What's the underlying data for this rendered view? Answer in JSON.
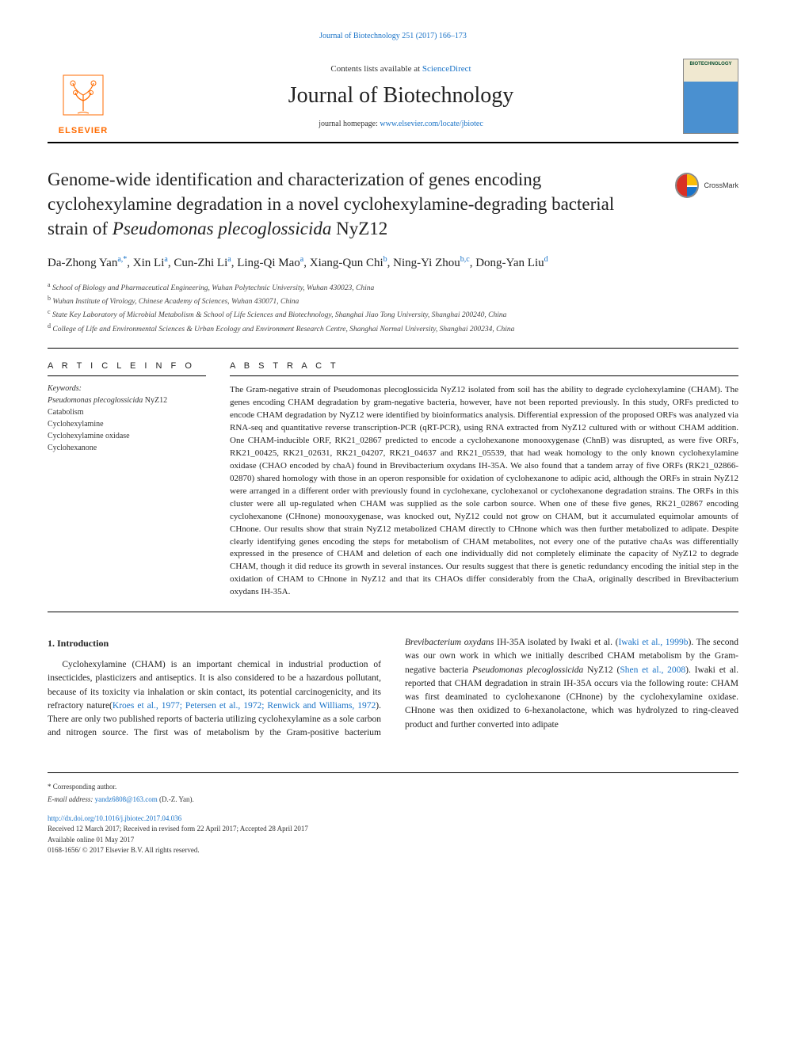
{
  "header_link": "Journal of Biotechnology 251 (2017) 166–173",
  "masthead": {
    "publisher_name": "ELSEVIER",
    "publisher_color": "#ff6b00",
    "contents_prefix": "Contents lists available at ",
    "contents_link": "ScienceDirect",
    "journal_name": "Journal of Biotechnology",
    "homepage_prefix": "journal homepage: ",
    "homepage_url": "www.elsevier.com/locate/jbiotec",
    "cover_text": "BIOTECHNOLOGY"
  },
  "crossmark_label": "CrossMark",
  "title_parts": {
    "p1": "Genome-wide identification and characterization of genes encoding cyclohexylamine degradation in a novel cyclohexylamine-degrading bacterial strain of ",
    "species": "Pseudomonas plecoglossicida",
    "strain": " NyZ12"
  },
  "authors_html": "Da-Zhong Yan<sup>a,*</sup>, Xin Li<sup>a</sup>, Cun-Zhi Li<sup>a</sup>, Ling-Qi Mao<sup>a</sup>, Xiang-Qun Chi<sup>b</sup>, Ning-Yi Zhou<sup>b,c</sup>, Dong-Yan Liu<sup>d</sup>",
  "affiliations": [
    {
      "sup": "a",
      "text": "School of Biology and Pharmaceutical Engineering, Wuhan Polytechnic University, Wuhan 430023, China"
    },
    {
      "sup": "b",
      "text": "Wuhan Institute of Virology, Chinese Academy of Sciences, Wuhan 430071, China"
    },
    {
      "sup": "c",
      "text": "State Key Laboratory of Microbial Metabolism & School of Life Sciences and Biotechnology, Shanghai Jiao Tong University, Shanghai 200240, China"
    },
    {
      "sup": "d",
      "text": "College of Life and Environmental Sciences & Urban Ecology and Environment Research Centre, Shanghai Normal University, Shanghai 200234, China"
    }
  ],
  "labels": {
    "article_info": "A R T I C L E  I N F O",
    "abstract": "A B S T R A C T",
    "keywords": "Keywords:"
  },
  "keywords": [
    "Pseudomonas plecoglossicida NyZ12",
    "Catabolism",
    "Cyclohexylamine",
    "Cyclohexylamine oxidase",
    "Cyclohexanone"
  ],
  "abstract": "The Gram-negative strain of Pseudomonas plecoglossicida NyZ12 isolated from soil has the ability to degrade cyclohexylamine (CHAM). The genes encoding CHAM degradation by gram-negative bacteria, however, have not been reported previously. In this study, ORFs predicted to encode CHAM degradation by NyZ12 were identified by bioinformatics analysis. Differential expression of the proposed ORFs was analyzed via RNA-seq and quantitative reverse transcription-PCR (qRT-PCR), using RNA extracted from NyZ12 cultured with or without CHAM addition. One CHAM-inducible ORF, RK21_02867 predicted to encode a cyclohexanone monooxygenase (ChnB) was disrupted, as were five ORFs, RK21_00425, RK21_02631, RK21_04207, RK21_04637 and RK21_05539, that had weak homology to the only known cyclohexylamine oxidase (CHAO encoded by chaA) found in Brevibacterium oxydans IH-35A. We also found that a tandem array of five ORFs (RK21_02866-02870) shared homology with those in an operon responsible for oxidation of cyclohexanone to adipic acid, although the ORFs in strain NyZ12 were arranged in a different order with previously found in cyclohexane, cyclohexanol or cyclohexanone degradation strains. The ORFs in this cluster were all up-regulated when CHAM was supplied as the sole carbon source. When one of these five genes, RK21_02867 encoding cyclohexanone (CHnone) monooxygenase, was knocked out, NyZ12 could not grow on CHAM, but it accumulated equimolar amounts of CHnone. Our results show that strain NyZ12 metabolized CHAM directly to CHnone which was then further metabolized to adipate. Despite clearly identifying genes encoding the steps for metabolism of CHAM metabolites, not every one of the putative chaAs was differentially expressed in the presence of CHAM and deletion of each one individually did not completely eliminate the capacity of NyZ12 to degrade CHAM, though it did reduce its growth in several instances. Our results suggest that there is genetic redundancy encoding the initial step in the oxidation of CHAM to CHnone in NyZ12 and that its CHAOs differ considerably from the ChaA, originally described in Brevibacterium oxydans IH-35A.",
  "intro": {
    "heading": "1. Introduction",
    "col1_pre": "Cyclohexylamine (CHAM) is an important chemical in industrial production of insecticides, plasticizers and antiseptics. It is also considered to be a hazardous pollutant, because of its toxicity via inhalation or skin contact, its potential carcinogenicity, and its refractory nature(",
    "col1_ref": "Kroes et al., 1977; Petersen et al., 1972; Renwick and Williams, 1972",
    "col1_post": "). There are only two published reports of bacteria utilizing cyclohexylamine as a sole carbon and nitrogen source. The",
    "col2_p1_pre": "first was of metabolism by the Gram-positive bacterium ",
    "col2_p1_em1": "Brevibacterium oxydans",
    "col2_p1_mid1": " IH-35A isolated by Iwaki et al. (",
    "col2_p1_ref1": "Iwaki et al., 1999b",
    "col2_p1_mid2": "). The second was our own work in which we initially described CHAM metabolism by the Gram-negative bacteria ",
    "col2_p1_em2": "Pseudomonas plecoglossicida",
    "col2_p1_mid3": " NyZ12 (",
    "col2_p1_ref2": "Shen et al., 2008",
    "col2_p1_post": "). Iwaki et al. reported that CHAM degradation in strain IH-35A occurs via the following route: CHAM was first deaminated to cyclohexanone (CHnone) by the cyclohexylamine oxidase. CHnone was then oxidized to 6-hexanolactone, which was hydrolyzed to ring-cleaved product and further converted into adipate"
  },
  "footer": {
    "corr": "* Corresponding author.",
    "email_label": "E-mail address: ",
    "email": "yandz6808@163.com",
    "email_suffix": " (D.-Z. Yan).",
    "doi": "http://dx.doi.org/10.1016/j.jbiotec.2017.04.036",
    "dates": "Received 12 March 2017; Received in revised form 22 April 2017; Accepted 28 April 2017",
    "online": "Available online 01 May 2017",
    "copyright": "0168-1656/ © 2017 Elsevier B.V. All rights reserved."
  },
  "colors": {
    "link": "#1a73c7",
    "publisher": "#ff6b00",
    "text": "#222222"
  }
}
